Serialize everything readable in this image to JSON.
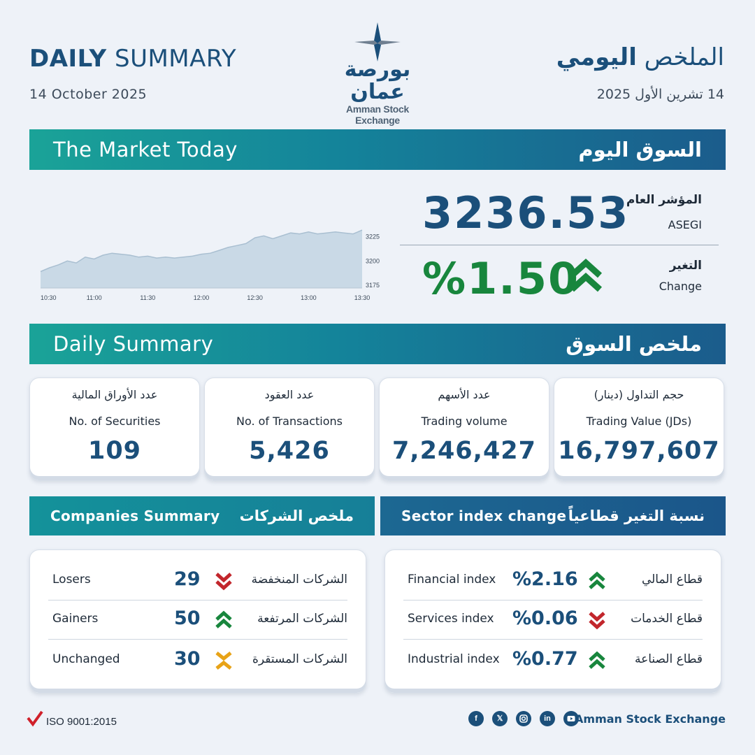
{
  "header": {
    "title_en_bold": "DAILY",
    "title_en_light": "SUMMARY",
    "date_en": "14 October 2025",
    "title_ar_light": "الملخص",
    "title_ar_bold": "اليومي",
    "date_ar": "14 تشرين الأول 2025",
    "logo_ar": "بورصة عمان",
    "logo_en": "Amman Stock Exchange"
  },
  "market_today": {
    "bar_en": "The Market Today",
    "bar_ar": "السوق اليوم",
    "index_label_ar": "المؤشر العام",
    "index_label_en": "ASEGI",
    "index_value": "3236.53",
    "change_label_ar": "التغير",
    "change_label_en": "Change",
    "change_value": "%1.50",
    "change_direction": "up",
    "positive_color": "#18863d",
    "negative_color": "#c2262c",
    "neutral_color": "#e8a317"
  },
  "chart_data": {
    "type": "area",
    "x_ticks": [
      "10:30",
      "11:00",
      "11:30",
      "12:00",
      "12:30",
      "13:00",
      "13:30"
    ],
    "y_ticks": [
      "3175",
      "3200",
      "3225"
    ],
    "ylim": [
      3172,
      3240
    ],
    "x": [
      "10:30",
      "10:35",
      "10:40",
      "10:45",
      "10:50",
      "10:55",
      "11:00",
      "11:05",
      "11:10",
      "11:15",
      "11:20",
      "11:25",
      "11:30",
      "11:35",
      "11:40",
      "11:45",
      "11:50",
      "11:55",
      "12:00",
      "12:05",
      "12:10",
      "12:15",
      "12:20",
      "12:25",
      "12:30",
      "12:35",
      "12:40",
      "12:45",
      "12:50",
      "12:55",
      "13:00",
      "13:05",
      "13:10",
      "13:15",
      "13:20",
      "13:25",
      "13:30"
    ],
    "values": [
      3189,
      3193,
      3196,
      3200,
      3198,
      3204,
      3202,
      3206,
      3208,
      3207,
      3206,
      3204,
      3205,
      3203,
      3204,
      3203,
      3204,
      3205,
      3207,
      3208,
      3211,
      3214,
      3216,
      3218,
      3224,
      3226,
      3223,
      3226,
      3229,
      3228,
      3230,
      3228,
      3229,
      3230,
      3229,
      3228,
      3232
    ],
    "fill_color": "#c9d9e6",
    "line_color": "#a9bfd1"
  },
  "daily_summary": {
    "bar_en": "Daily Summary",
    "bar_ar": "ملخص السوق",
    "cards": [
      {
        "ar": "عدد الأوراق المالية",
        "en": "No. of Securities",
        "value": "109"
      },
      {
        "ar": "عدد العقود",
        "en": "No. of Transactions",
        "value": "5,426"
      },
      {
        "ar": "عدد الأسهم",
        "en": "Trading volume",
        "value": "7,246,427"
      },
      {
        "ar": "حجم التداول (دينار)",
        "en": "Trading Value (JDs)",
        "value": "16,797,607"
      }
    ]
  },
  "companies": {
    "bar_en": "Companies Summary",
    "bar_ar": "ملخص الشركات",
    "rows": [
      {
        "en": "Losers",
        "value": "29",
        "icon": "chevron-double-down-icon",
        "ar": "الشركات المنخفضة"
      },
      {
        "en": "Gainers",
        "value": "50",
        "icon": "chevron-double-up-icon",
        "ar": "الشركات المرتفعة"
      },
      {
        "en": "Unchanged",
        "value": "30",
        "icon": "chevron-converge-icon",
        "ar": "الشركات المستقرة"
      }
    ]
  },
  "sectors": {
    "bar_en": "Sector index change",
    "bar_ar": "نسبة التغير قطاعياً",
    "rows": [
      {
        "en": "Financial index",
        "value": "%2.16",
        "icon": "chevron-double-up-icon",
        "ar": "قطاع المالي"
      },
      {
        "en": "Services index",
        "value": "%0.06",
        "icon": "chevron-double-down-icon",
        "ar": "قطاع الخدمات"
      },
      {
        "en": "Industrial index",
        "value": "%0.77",
        "icon": "chevron-double-up-icon",
        "ar": "قطاع الصناعة"
      }
    ]
  },
  "footer": {
    "iso": "ISO 9001:2015",
    "brand": "Amman Stock Exchange",
    "social_icons": [
      "facebook-icon",
      "x-icon",
      "instagram-icon",
      "linkedin-icon",
      "youtube-icon"
    ]
  }
}
